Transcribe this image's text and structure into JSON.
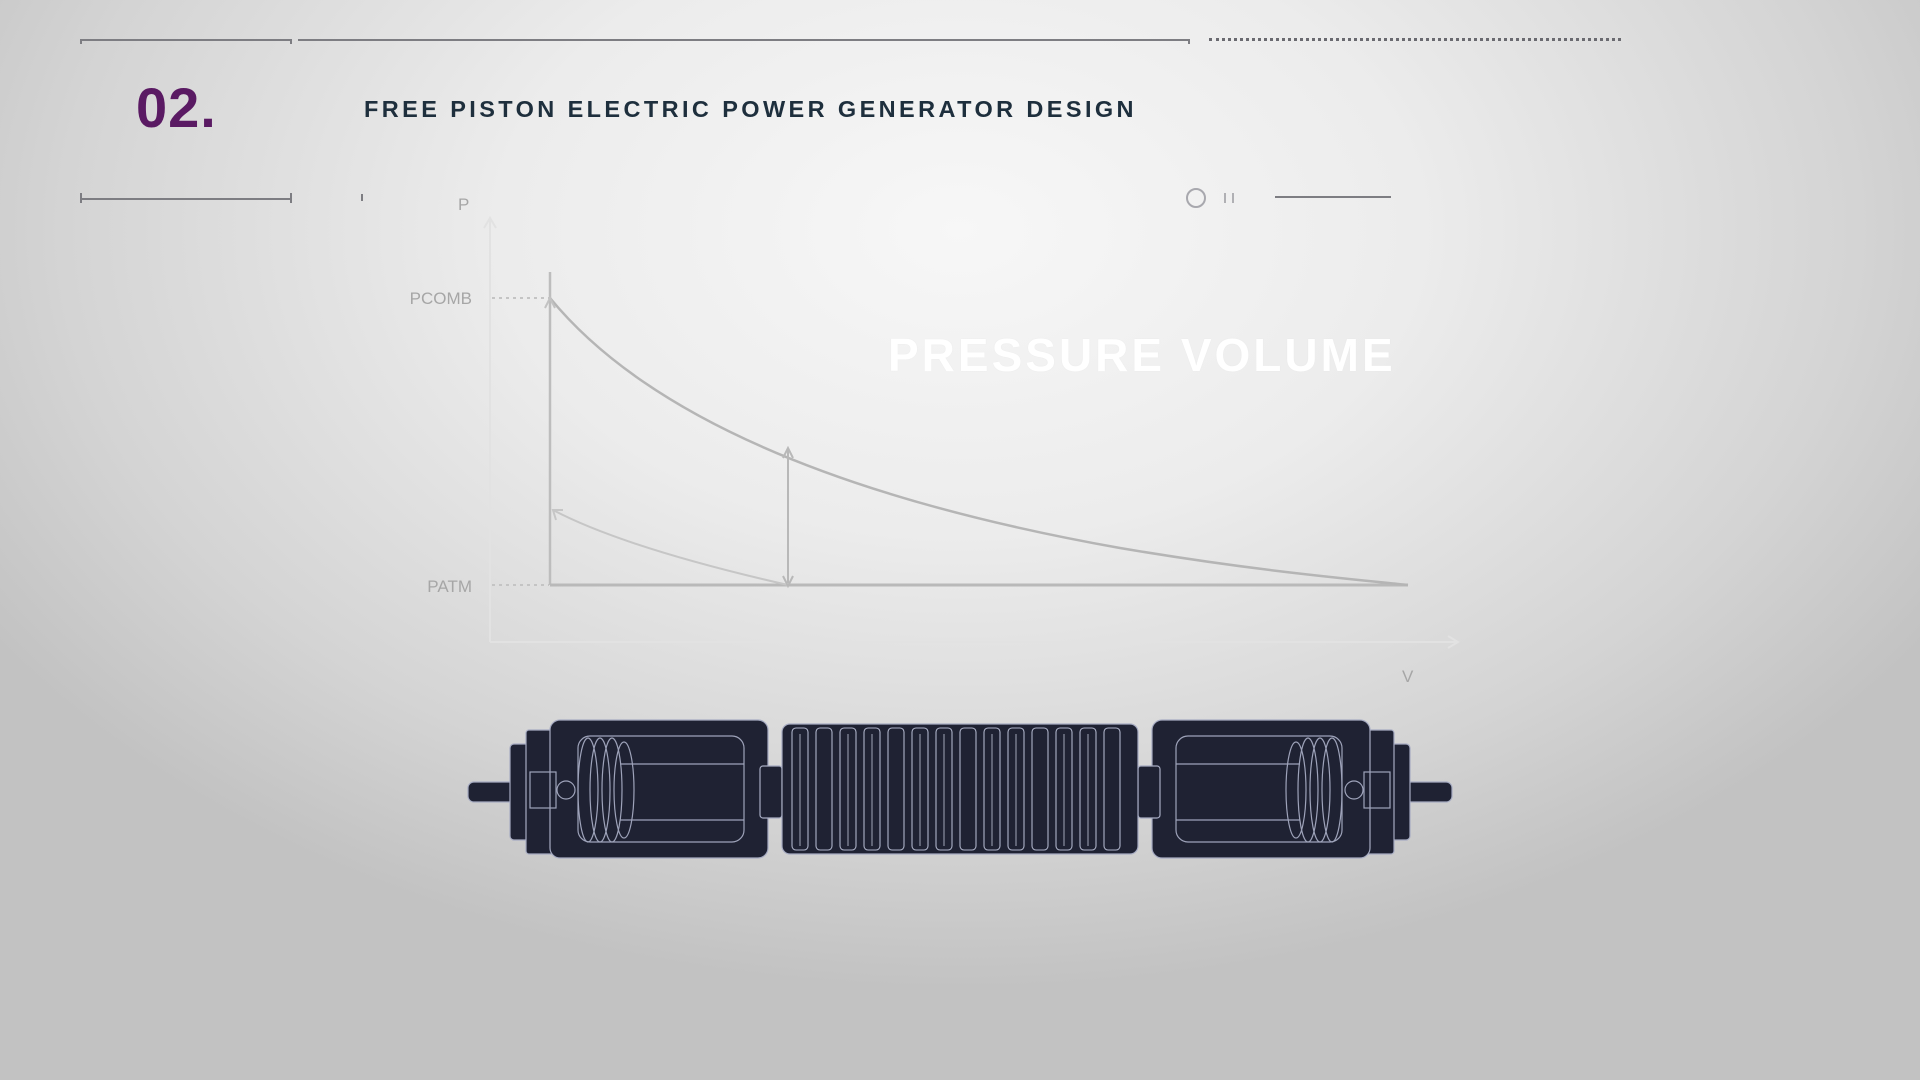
{
  "header": {
    "section_number": "02.",
    "title": "FREE PISTON ELECTRIC POWER GENERATOR DESIGN"
  },
  "overlay": {
    "title": "PRESSURE VOLUME"
  },
  "diagram": {
    "y_axis_label": "P",
    "x_axis_label": "V",
    "combustion_pressure_label": "PCOMB",
    "atmospheric_pressure_label": "PATM"
  },
  "colors": {
    "accent": "#5a1a63",
    "title_text": "#1e2f3d",
    "axis_text": "#9a9a9a",
    "curve": "#b3b3b3",
    "generator_body": "#1f2233",
    "generator_lines": "#a6abc2"
  }
}
